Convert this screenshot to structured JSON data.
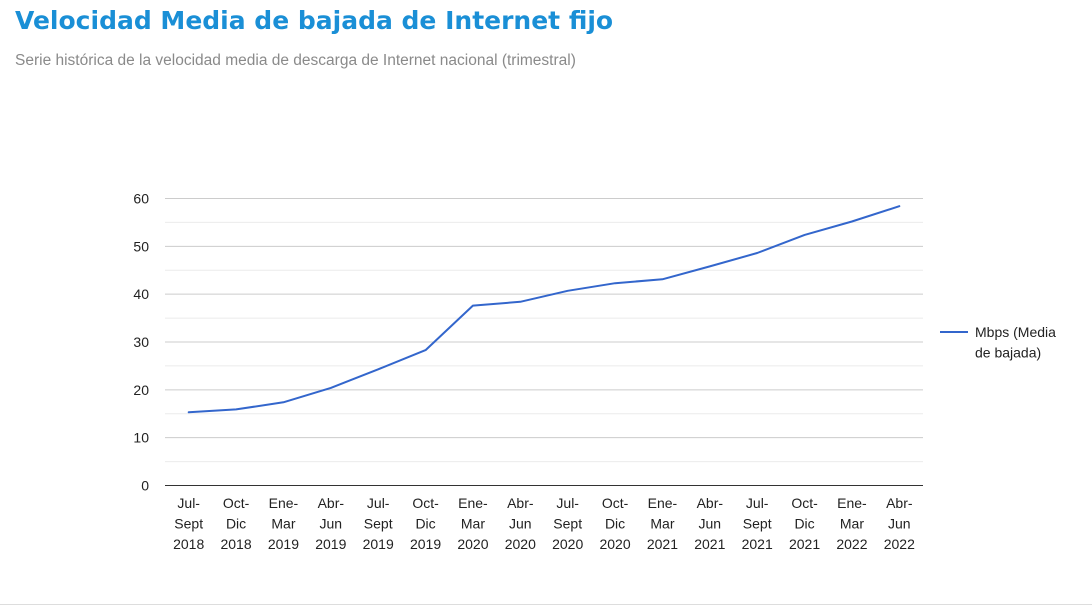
{
  "header": {
    "title": "Velocidad Media de bajada de Internet fijo",
    "subtitle": "Serie histórica de la velocidad media de descarga de Internet nacional (trimestral)"
  },
  "colors": {
    "title": "#1a8fd6",
    "line": "#3366cc",
    "gridline": "#cccccc",
    "minor_gridline": "#ebebeb",
    "axis_text": "#222222",
    "subtitle": "#8a8a8a"
  },
  "chart_data": {
    "type": "line",
    "title": "",
    "xlabel": "",
    "ylabel": "",
    "ylim": [
      0,
      60
    ],
    "yticks": [
      0,
      10,
      20,
      30,
      40,
      50,
      60
    ],
    "grid": true,
    "legend_position": "right",
    "categories": [
      [
        "Jul-",
        "Sept",
        "2018"
      ],
      [
        "Oct-",
        "Dic",
        "2018"
      ],
      [
        "Ene-",
        "Mar",
        "2019"
      ],
      [
        "Abr-",
        "Jun",
        "2019"
      ],
      [
        "Jul-",
        "Sept",
        "2019"
      ],
      [
        "Oct-",
        "Dic",
        "2019"
      ],
      [
        "Ene-",
        "Mar",
        "2020"
      ],
      [
        "Abr-",
        "Jun",
        "2020"
      ],
      [
        "Jul-",
        "Sept",
        "2020"
      ],
      [
        "Oct-",
        "Dic",
        "2020"
      ],
      [
        "Ene-",
        "Mar",
        "2021"
      ],
      [
        "Abr-",
        "Jun",
        "2021"
      ],
      [
        "Jul-",
        "Sept",
        "2021"
      ],
      [
        "Oct-",
        "Dic",
        "2021"
      ],
      [
        "Ene-",
        "Mar",
        "2022"
      ],
      [
        "Abr-",
        "Jun",
        "2022"
      ]
    ],
    "series": [
      {
        "name": "Mbps (Media de bajada)",
        "legend_lines": [
          "Mbps (Media",
          "de bajada)"
        ],
        "values": [
          15.3,
          15.9,
          17.4,
          20.4,
          24.3,
          28.3,
          37.6,
          38.4,
          40.7,
          42.3,
          43.1,
          45.8,
          48.6,
          52.4,
          55.2,
          58.4
        ]
      }
    ]
  }
}
